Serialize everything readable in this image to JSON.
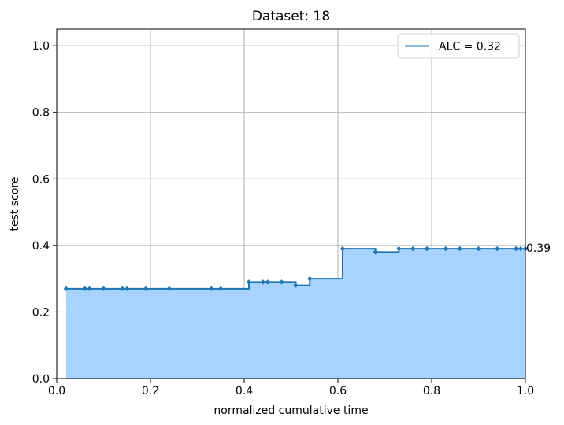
{
  "chart_data": {
    "type": "area",
    "title": "Dataset: 18",
    "xlabel": "normalized cumulative time",
    "ylabel": "test score",
    "xlim": [
      0,
      1
    ],
    "ylim": [
      0,
      1.05
    ],
    "xticks": [
      0.0,
      0.2,
      0.4,
      0.6,
      0.8,
      1.0
    ],
    "xtick_labels": [
      "0.0",
      "0.2",
      "0.4",
      "0.6",
      "0.8",
      "1.0"
    ],
    "yticks": [
      0.0,
      0.2,
      0.4,
      0.6,
      0.8,
      1.0
    ],
    "ytick_labels": [
      "0.0",
      "0.2",
      "0.4",
      "0.6",
      "0.8",
      "1.0"
    ],
    "grid": true,
    "legend_position": "top-right",
    "series": [
      {
        "name": "ALC = 0.32",
        "step": "post",
        "color": "#1f77b4",
        "fill_color": "#a8d3ff",
        "x": [
          0.02,
          0.06,
          0.07,
          0.1,
          0.14,
          0.15,
          0.19,
          0.24,
          0.33,
          0.35,
          0.41,
          0.44,
          0.45,
          0.48,
          0.51,
          0.54,
          0.61,
          0.68,
          0.73,
          0.76,
          0.79,
          0.83,
          0.86,
          0.9,
          0.94,
          0.98,
          0.99,
          1.0
        ],
        "y": [
          0.27,
          0.27,
          0.27,
          0.27,
          0.27,
          0.27,
          0.27,
          0.27,
          0.27,
          0.27,
          0.29,
          0.29,
          0.29,
          0.29,
          0.28,
          0.3,
          0.39,
          0.38,
          0.39,
          0.39,
          0.39,
          0.39,
          0.39,
          0.39,
          0.39,
          0.39,
          0.39,
          0.39
        ]
      }
    ],
    "annotations": [
      {
        "text": "0.39",
        "x": 1.0,
        "y": 0.39
      }
    ]
  }
}
